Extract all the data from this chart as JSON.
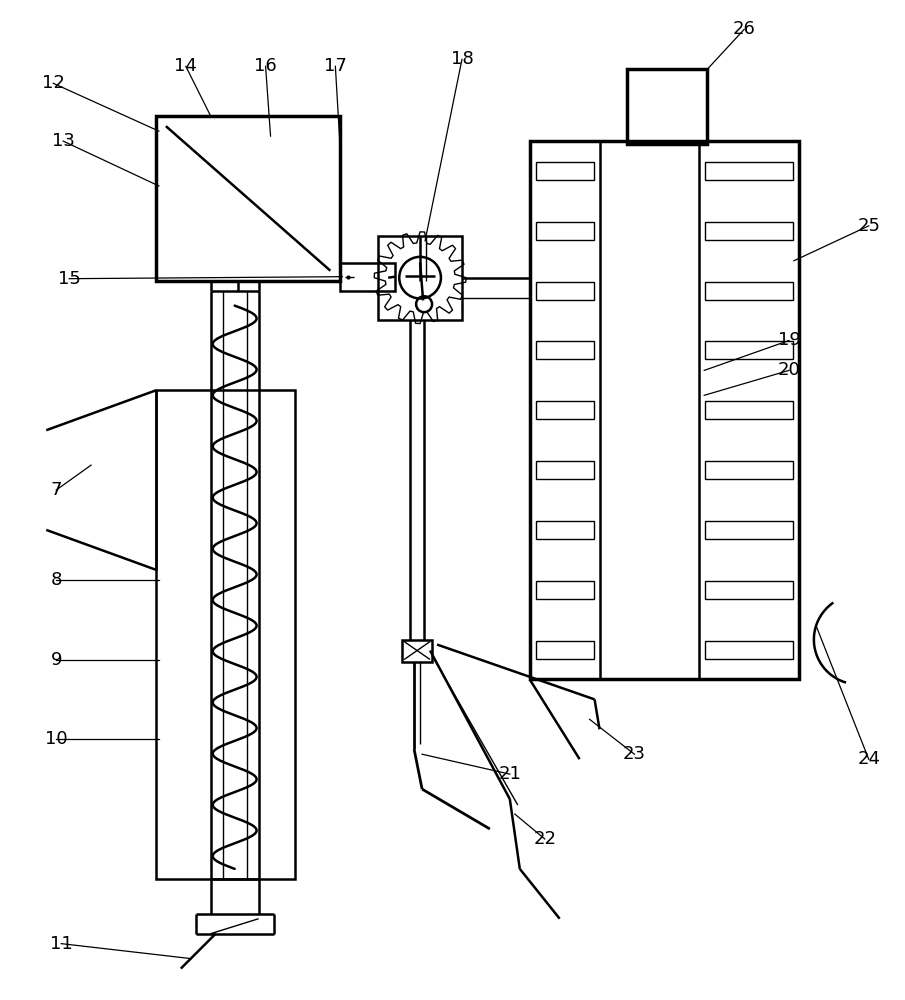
{
  "bg_color": "#ffffff",
  "line_color": "#000000",
  "lw": 1.8,
  "lw_thick": 2.5,
  "lw_thin": 1.0
}
